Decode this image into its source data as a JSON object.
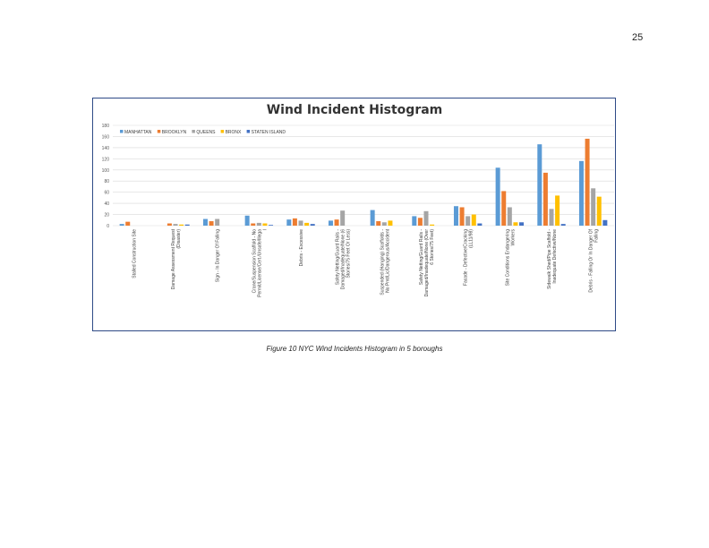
{
  "page": {
    "number": "25"
  },
  "caption": "Figure 10 NYC Wind Incidents Histogram in 5 boroughs",
  "chart_data": {
    "type": "bar",
    "title": "Wind Incident Histogram",
    "xlabel": "",
    "ylabel": "",
    "ylim": [
      0,
      180
    ],
    "yticks": [
      0,
      20,
      40,
      60,
      80,
      100,
      120,
      140,
      160,
      180
    ],
    "grid": true,
    "legend_position": "top-left",
    "categories": [
      [
        "Stalled Construction Site"
      ],
      [
        "Damage Assessment Request",
        "(Disaster)"
      ],
      [
        "Sign - In Danger Of Falling"
      ],
      [
        "Crane/Suspension Scaffold - No",
        "Permit/License/Cert./Unsafe/Illega",
        "l"
      ],
      [
        "Debris - Excessive"
      ],
      [
        "Safety Netting/Guard Rails -",
        "Damaged/Inadequate/None (6",
        "Stories/75 Feet Or Less)"
      ],
      [
        "Suspended (Hanging) Scaffolds -",
        "No Pmt/Lic/Dangerous/Accident"
      ],
      [
        "Safety Netting/Guard Rails -",
        "Damaged/Inadequate/None (Over",
        "6 Stories/75 Feet)"
      ],
      [
        "Facade - Defective/Cracking",
        "(LL11/98)"
      ],
      [
        "Site Conditions Endangering",
        "Workers"
      ],
      [
        "Sidewalk Shed/Pipe Scaffold -",
        "Inadequate Defective/None"
      ],
      [
        "Debris - Falling Or In Danger Of",
        "Falling"
      ]
    ],
    "series": [
      {
        "name": "MANHATTAN",
        "color": "#5b9bd5",
        "values": [
          3,
          0,
          12,
          18,
          11,
          9,
          28,
          17,
          35,
          104,
          146,
          116
        ]
      },
      {
        "name": "BROOKLYN",
        "color": "#ed7d31",
        "values": [
          7,
          4,
          8,
          4,
          13,
          11,
          8,
          14,
          33,
          62,
          95,
          156
        ]
      },
      {
        "name": "QUEENS",
        "color": "#a5a5a5",
        "values": [
          0,
          3,
          12,
          5,
          9,
          27,
          6,
          26,
          17,
          33,
          30,
          67
        ]
      },
      {
        "name": "BRONX",
        "color": "#ffc000",
        "values": [
          0,
          2,
          0,
          4,
          5,
          0,
          9,
          2,
          20,
          6,
          54,
          52
        ]
      },
      {
        "name": "STATEN ISLAND",
        "color": "#4472c4",
        "values": [
          0,
          2,
          0,
          1,
          3,
          0,
          0,
          0,
          4,
          6,
          3,
          10
        ]
      }
    ]
  }
}
